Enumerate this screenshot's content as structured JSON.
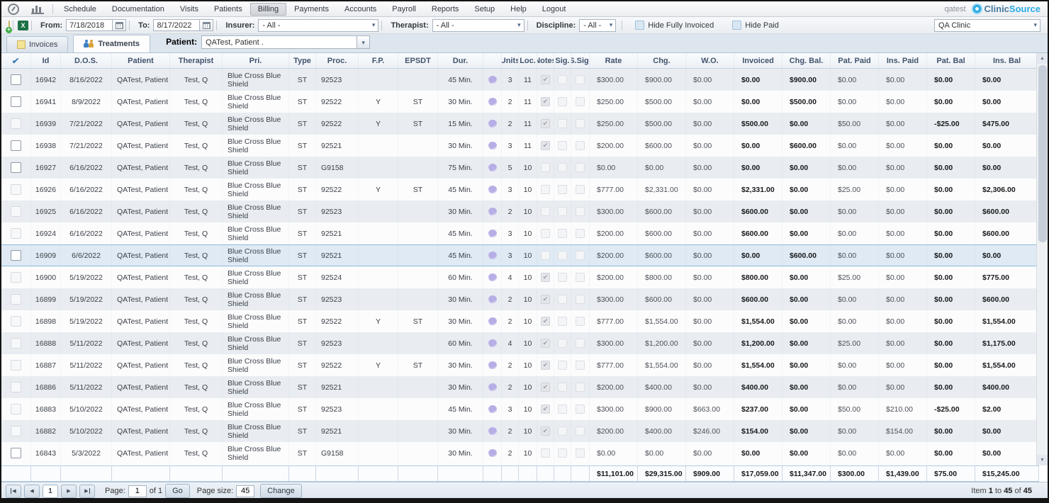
{
  "menu": {
    "items": [
      {
        "label": "Schedule",
        "active": false
      },
      {
        "label": "Documentation",
        "active": false
      },
      {
        "label": "Visits",
        "active": false
      },
      {
        "label": "Patients",
        "active": false
      },
      {
        "label": "Billing",
        "active": true
      },
      {
        "label": "Payments",
        "active": false
      },
      {
        "label": "Accounts",
        "active": false
      },
      {
        "label": "Payroll",
        "active": false
      },
      {
        "label": "Reports",
        "active": false
      },
      {
        "label": "Setup",
        "active": false
      },
      {
        "label": "Help",
        "active": false
      },
      {
        "label": "Logout",
        "active": false
      }
    ],
    "user": "qatest",
    "brand": {
      "part1": "Clinic",
      "part2": "Source"
    }
  },
  "icons": [
    "dashboard-gauge-icon",
    "bar-chart-icon",
    "add-note-icon",
    "excel-export-icon",
    "calendar-icon",
    "invoices-note-icon",
    "treatments-people-icon",
    "note-bubble-icon",
    "clinicsource-logo-icon"
  ],
  "glyphs": {
    "dropdown": "▾",
    "check": "✔",
    "up": "▲",
    "down": "▼",
    "prev": "◀",
    "next": "▶"
  },
  "toolbar": {
    "from_label": "From:",
    "from_value": "7/18/2018",
    "to_label": "To:",
    "to_value": "8/17/2022",
    "insurer_label": "Insurer:",
    "insurer_value": "- All -",
    "therapist_label": "Therapist:",
    "therapist_value": "- All -",
    "discipline_label": "Discipline:",
    "discipline_value": "- All -",
    "hide_fully_invoiced_label": "Hide Fully Invoiced",
    "hide_paid_label": "Hide Paid",
    "clinic_value": "QA Clinic"
  },
  "tabs": {
    "invoices": "Invoices",
    "treatments": "Treatments",
    "patient_label": "Patient:",
    "patient_value": "QATest, Patient ."
  },
  "table": {
    "headers": [
      "",
      "Id",
      "D.O.S.",
      "Patient",
      "Therapist",
      "Pri.",
      "Type",
      "Proc.",
      "F.P.",
      "EPSDT",
      "Dur.",
      "",
      "Units",
      "Loc.",
      "Notes",
      "Sig.",
      "S.Sig.",
      "Rate",
      "Chg.",
      "W.O.",
      "Invoiced",
      "Chg. Bal.",
      "Pat. Paid",
      "Ins. Paid",
      "Pat. Bal",
      "Ins. Bal"
    ],
    "rows": [
      {
        "id": "16942",
        "dos": "8/16/2022",
        "patient": "QATest, Patient",
        "therapist": "Test, Q",
        "pri": "Blue Cross Blue Shield",
        "type": "ST",
        "proc": "92523",
        "fp": "",
        "epsdt": "",
        "dur": "45 Min.",
        "units": "3",
        "loc": "11",
        "notes": true,
        "sig": false,
        "ssig": false,
        "rate": "$300.00",
        "chg": "$900.00",
        "wo": "$0.00",
        "invoiced": "$0.00",
        "chg_bal": "$900.00",
        "pat_paid": "$0.00",
        "ins_paid": "$0.00",
        "pat_bal": "$0.00",
        "ins_bal": "$0.00",
        "selectable": true,
        "selected": false
      },
      {
        "id": "16941",
        "dos": "8/9/2022",
        "patient": "QATest, Patient",
        "therapist": "Test, Q",
        "pri": "Blue Cross Blue Shield",
        "type": "ST",
        "proc": "92522",
        "fp": "Y",
        "epsdt": "ST",
        "dur": "30 Min.",
        "units": "2",
        "loc": "11",
        "notes": true,
        "sig": false,
        "ssig": false,
        "rate": "$250.00",
        "chg": "$500.00",
        "wo": "$0.00",
        "invoiced": "$0.00",
        "chg_bal": "$500.00",
        "pat_paid": "$0.00",
        "ins_paid": "$0.00",
        "pat_bal": "$0.00",
        "ins_bal": "$0.00",
        "selectable": true,
        "selected": false
      },
      {
        "id": "16939",
        "dos": "7/21/2022",
        "patient": "QATest, Patient",
        "therapist": "Test, Q",
        "pri": "Blue Cross Blue Shield",
        "type": "ST",
        "proc": "92522",
        "fp": "Y",
        "epsdt": "ST",
        "dur": "15 Min.",
        "units": "2",
        "loc": "11",
        "notes": true,
        "sig": false,
        "ssig": false,
        "rate": "$250.00",
        "chg": "$500.00",
        "wo": "$0.00",
        "invoiced": "$500.00",
        "chg_bal": "$0.00",
        "pat_paid": "$50.00",
        "ins_paid": "$0.00",
        "pat_bal": "-$25.00",
        "ins_bal": "$475.00",
        "selectable": false,
        "selected": false
      },
      {
        "id": "16938",
        "dos": "7/21/2022",
        "patient": "QATest, Patient",
        "therapist": "Test, Q",
        "pri": "Blue Cross Blue Shield",
        "type": "ST",
        "proc": "92521",
        "fp": "",
        "epsdt": "",
        "dur": "30 Min.",
        "units": "3",
        "loc": "11",
        "notes": true,
        "sig": false,
        "ssig": false,
        "rate": "$200.00",
        "chg": "$600.00",
        "wo": "$0.00",
        "invoiced": "$0.00",
        "chg_bal": "$600.00",
        "pat_paid": "$0.00",
        "ins_paid": "$0.00",
        "pat_bal": "$0.00",
        "ins_bal": "$0.00",
        "selectable": true,
        "selected": false
      },
      {
        "id": "16927",
        "dos": "6/16/2022",
        "patient": "QATest, Patient",
        "therapist": "Test, Q",
        "pri": "Blue Cross Blue Shield",
        "type": "ST",
        "proc": "G9158",
        "fp": "",
        "epsdt": "",
        "dur": "75 Min.",
        "units": "5",
        "loc": "10",
        "notes": false,
        "sig": false,
        "ssig": false,
        "rate": "$0.00",
        "chg": "$0.00",
        "wo": "$0.00",
        "invoiced": "$0.00",
        "chg_bal": "$0.00",
        "pat_paid": "$0.00",
        "ins_paid": "$0.00",
        "pat_bal": "$0.00",
        "ins_bal": "$0.00",
        "selectable": true,
        "selected": false
      },
      {
        "id": "16926",
        "dos": "6/16/2022",
        "patient": "QATest, Patient",
        "therapist": "Test, Q",
        "pri": "Blue Cross Blue Shield",
        "type": "ST",
        "proc": "92522",
        "fp": "Y",
        "epsdt": "ST",
        "dur": "45 Min.",
        "units": "3",
        "loc": "10",
        "notes": false,
        "sig": false,
        "ssig": false,
        "rate": "$777.00",
        "chg": "$2,331.00",
        "wo": "$0.00",
        "invoiced": "$2,331.00",
        "chg_bal": "$0.00",
        "pat_paid": "$25.00",
        "ins_paid": "$0.00",
        "pat_bal": "$0.00",
        "ins_bal": "$2,306.00",
        "selectable": false,
        "selected": false
      },
      {
        "id": "16925",
        "dos": "6/16/2022",
        "patient": "QATest, Patient",
        "therapist": "Test, Q",
        "pri": "Blue Cross Blue Shield",
        "type": "ST",
        "proc": "92523",
        "fp": "",
        "epsdt": "",
        "dur": "30 Min.",
        "units": "2",
        "loc": "10",
        "notes": false,
        "sig": false,
        "ssig": false,
        "rate": "$300.00",
        "chg": "$600.00",
        "wo": "$0.00",
        "invoiced": "$600.00",
        "chg_bal": "$0.00",
        "pat_paid": "$0.00",
        "ins_paid": "$0.00",
        "pat_bal": "$0.00",
        "ins_bal": "$600.00",
        "selectable": false,
        "selected": false
      },
      {
        "id": "16924",
        "dos": "6/16/2022",
        "patient": "QATest, Patient",
        "therapist": "Test, Q",
        "pri": "Blue Cross Blue Shield",
        "type": "ST",
        "proc": "92521",
        "fp": "",
        "epsdt": "",
        "dur": "45 Min.",
        "units": "3",
        "loc": "10",
        "notes": false,
        "sig": false,
        "ssig": false,
        "rate": "$200.00",
        "chg": "$600.00",
        "wo": "$0.00",
        "invoiced": "$600.00",
        "chg_bal": "$0.00",
        "pat_paid": "$0.00",
        "ins_paid": "$0.00",
        "pat_bal": "$0.00",
        "ins_bal": "$600.00",
        "selectable": false,
        "selected": false
      },
      {
        "id": "16909",
        "dos": "6/6/2022",
        "patient": "QATest, Patient",
        "therapist": "Test, Q",
        "pri": "Blue Cross Blue Shield",
        "type": "ST",
        "proc": "92521",
        "fp": "",
        "epsdt": "",
        "dur": "45 Min.",
        "units": "3",
        "loc": "10",
        "notes": false,
        "sig": false,
        "ssig": false,
        "rate": "$200.00",
        "chg": "$600.00",
        "wo": "$0.00",
        "invoiced": "$0.00",
        "chg_bal": "$600.00",
        "pat_paid": "$0.00",
        "ins_paid": "$0.00",
        "pat_bal": "$0.00",
        "ins_bal": "$0.00",
        "selectable": true,
        "selected": true
      },
      {
        "id": "16900",
        "dos": "5/19/2022",
        "patient": "QATest, Patient",
        "therapist": "Test, Q",
        "pri": "Blue Cross Blue Shield",
        "type": "ST",
        "proc": "92524",
        "fp": "",
        "epsdt": "",
        "dur": "60 Min.",
        "units": "4",
        "loc": "10",
        "notes": true,
        "sig": false,
        "ssig": false,
        "rate": "$200.00",
        "chg": "$800.00",
        "wo": "$0.00",
        "invoiced": "$800.00",
        "chg_bal": "$0.00",
        "pat_paid": "$25.00",
        "ins_paid": "$0.00",
        "pat_bal": "$0.00",
        "ins_bal": "$775.00",
        "selectable": false,
        "selected": false
      },
      {
        "id": "16899",
        "dos": "5/19/2022",
        "patient": "QATest, Patient",
        "therapist": "Test, Q",
        "pri": "Blue Cross Blue Shield",
        "type": "ST",
        "proc": "92523",
        "fp": "",
        "epsdt": "",
        "dur": "30 Min.",
        "units": "2",
        "loc": "10",
        "notes": true,
        "sig": false,
        "ssig": false,
        "rate": "$300.00",
        "chg": "$600.00",
        "wo": "$0.00",
        "invoiced": "$600.00",
        "chg_bal": "$0.00",
        "pat_paid": "$0.00",
        "ins_paid": "$0.00",
        "pat_bal": "$0.00",
        "ins_bal": "$600.00",
        "selectable": false,
        "selected": false
      },
      {
        "id": "16898",
        "dos": "5/19/2022",
        "patient": "QATest, Patient",
        "therapist": "Test, Q",
        "pri": "Blue Cross Blue Shield",
        "type": "ST",
        "proc": "92522",
        "fp": "Y",
        "epsdt": "ST",
        "dur": "30 Min.",
        "units": "2",
        "loc": "10",
        "notes": true,
        "sig": false,
        "ssig": false,
        "rate": "$777.00",
        "chg": "$1,554.00",
        "wo": "$0.00",
        "invoiced": "$1,554.00",
        "chg_bal": "$0.00",
        "pat_paid": "$0.00",
        "ins_paid": "$0.00",
        "pat_bal": "$0.00",
        "ins_bal": "$1,554.00",
        "selectable": false,
        "selected": false
      },
      {
        "id": "16888",
        "dos": "5/11/2022",
        "patient": "QATest, Patient",
        "therapist": "Test, Q",
        "pri": "Blue Cross Blue Shield",
        "type": "ST",
        "proc": "92523",
        "fp": "",
        "epsdt": "",
        "dur": "60 Min.",
        "units": "4",
        "loc": "10",
        "notes": true,
        "sig": false,
        "ssig": false,
        "rate": "$300.00",
        "chg": "$1,200.00",
        "wo": "$0.00",
        "invoiced": "$1,200.00",
        "chg_bal": "$0.00",
        "pat_paid": "$25.00",
        "ins_paid": "$0.00",
        "pat_bal": "$0.00",
        "ins_bal": "$1,175.00",
        "selectable": false,
        "selected": false
      },
      {
        "id": "16887",
        "dos": "5/11/2022",
        "patient": "QATest, Patient",
        "therapist": "Test, Q",
        "pri": "Blue Cross Blue Shield",
        "type": "ST",
        "proc": "92522",
        "fp": "Y",
        "epsdt": "ST",
        "dur": "30 Min.",
        "units": "2",
        "loc": "10",
        "notes": true,
        "sig": false,
        "ssig": false,
        "rate": "$777.00",
        "chg": "$1,554.00",
        "wo": "$0.00",
        "invoiced": "$1,554.00",
        "chg_bal": "$0.00",
        "pat_paid": "$0.00",
        "ins_paid": "$0.00",
        "pat_bal": "$0.00",
        "ins_bal": "$1,554.00",
        "selectable": false,
        "selected": false
      },
      {
        "id": "16886",
        "dos": "5/11/2022",
        "patient": "QATest, Patient",
        "therapist": "Test, Q",
        "pri": "Blue Cross Blue Shield",
        "type": "ST",
        "proc": "92521",
        "fp": "",
        "epsdt": "",
        "dur": "30 Min.",
        "units": "2",
        "loc": "10",
        "notes": true,
        "sig": false,
        "ssig": false,
        "rate": "$200.00",
        "chg": "$400.00",
        "wo": "$0.00",
        "invoiced": "$400.00",
        "chg_bal": "$0.00",
        "pat_paid": "$0.00",
        "ins_paid": "$0.00",
        "pat_bal": "$0.00",
        "ins_bal": "$400.00",
        "selectable": false,
        "selected": false
      },
      {
        "id": "16883",
        "dos": "5/10/2022",
        "patient": "QATest, Patient",
        "therapist": "Test, Q",
        "pri": "Blue Cross Blue Shield",
        "type": "ST",
        "proc": "92523",
        "fp": "",
        "epsdt": "",
        "dur": "45 Min.",
        "units": "3",
        "loc": "10",
        "notes": true,
        "sig": false,
        "ssig": false,
        "rate": "$300.00",
        "chg": "$900.00",
        "wo": "$663.00",
        "invoiced": "$237.00",
        "chg_bal": "$0.00",
        "pat_paid": "$50.00",
        "ins_paid": "$210.00",
        "pat_bal": "-$25.00",
        "ins_bal": "$2.00",
        "selectable": false,
        "selected": false
      },
      {
        "id": "16882",
        "dos": "5/10/2022",
        "patient": "QATest, Patient",
        "therapist": "Test, Q",
        "pri": "Blue Cross Blue Shield",
        "type": "ST",
        "proc": "92521",
        "fp": "",
        "epsdt": "",
        "dur": "30 Min.",
        "units": "2",
        "loc": "10",
        "notes": true,
        "sig": false,
        "ssig": false,
        "rate": "$200.00",
        "chg": "$400.00",
        "wo": "$246.00",
        "invoiced": "$154.00",
        "chg_bal": "$0.00",
        "pat_paid": "$0.00",
        "ins_paid": "$154.00",
        "pat_bal": "$0.00",
        "ins_bal": "$0.00",
        "selectable": false,
        "selected": false
      },
      {
        "id": "16843",
        "dos": "5/3/2022",
        "patient": "QATest, Patient",
        "therapist": "Test, Q",
        "pri": "Blue Cross Blue Shield",
        "type": "ST",
        "proc": "G9158",
        "fp": "",
        "epsdt": "",
        "dur": "30 Min.",
        "units": "2",
        "loc": "10",
        "notes": false,
        "sig": false,
        "ssig": false,
        "rate": "$0.00",
        "chg": "$0.00",
        "wo": "$0.00",
        "invoiced": "$0.00",
        "chg_bal": "$0.00",
        "pat_paid": "$0.00",
        "ins_paid": "$0.00",
        "pat_bal": "$0.00",
        "ins_bal": "$0.00",
        "selectable": true,
        "selected": false
      }
    ],
    "totals": {
      "rate": "$11,101.00",
      "chg": "$29,315.00",
      "wo": "$909.00",
      "invoiced": "$17,059.00",
      "chg_bal": "$11,347.00",
      "pat_paid": "$300.00",
      "ins_paid": "$1,439.00",
      "pat_bal": "$75.00",
      "ins_bal": "$15,245.00"
    }
  },
  "pager": {
    "page_label": "Page:",
    "page_value": "1",
    "of_text": "of 1",
    "go_label": "Go",
    "page_size_label": "Page size:",
    "page_size_value": "45",
    "change_label": "Change",
    "items": {
      "prefix": "Item",
      "from": "1",
      "to_word": "to",
      "to": "45",
      "of_word": "of",
      "total": "45"
    }
  }
}
